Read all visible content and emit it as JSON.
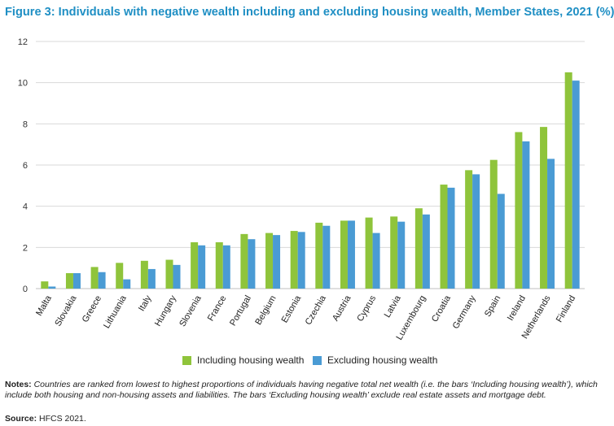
{
  "title": "Figure 3: Individuals with negative wealth including and excluding housing wealth, Member States, 2021 (%)",
  "colors": {
    "including": "#8fc43b",
    "excluding": "#4a9bd4",
    "title": "#1f8fc4",
    "grid": "#d9d9d9"
  },
  "chart_data": {
    "type": "bar",
    "title": "Individuals with negative wealth including and excluding housing wealth, Member States, 2021 (%)",
    "xlabel": "",
    "ylabel": "",
    "ylim": [
      0,
      12
    ],
    "yticks": [
      0,
      2,
      4,
      6,
      8,
      10,
      12
    ],
    "grid": true,
    "categories": [
      "Malta",
      "Slovakia",
      "Greece",
      "Lithuania",
      "Italy",
      "Hungary",
      "Slovenia",
      "France",
      "Portugal",
      "Belgium",
      "Estonia",
      "Czechia",
      "Austria",
      "Cyprus",
      "Latvia",
      "Luxembourg",
      "Croatia",
      "Germany",
      "Spain",
      "Ireland",
      "Netherlands",
      "Finland"
    ],
    "series": [
      {
        "name": "Including housing wealth",
        "values": [
          0.35,
          0.75,
          1.05,
          1.25,
          1.35,
          1.4,
          2.25,
          2.25,
          2.65,
          2.7,
          2.8,
          3.2,
          3.3,
          3.45,
          3.5,
          3.9,
          5.05,
          5.75,
          6.25,
          7.6,
          7.85,
          10.5
        ]
      },
      {
        "name": "Excluding housing wealth",
        "values": [
          0.1,
          0.75,
          0.8,
          0.45,
          0.95,
          1.15,
          2.1,
          2.1,
          2.4,
          2.6,
          2.75,
          3.05,
          3.3,
          2.7,
          3.25,
          3.6,
          4.9,
          5.55,
          4.6,
          7.15,
          6.3,
          10.1
        ]
      }
    ],
    "legend_position": "bottom-center"
  },
  "legend": {
    "including": "Including housing wealth",
    "excluding": "Excluding housing wealth"
  },
  "notes": {
    "label": "Notes:",
    "text": "Countries are ranked from lowest to highest proportions of individuals having negative total net wealth (i.e. the bars ‘Including housing wealth’), which include both housing and non-housing assets and liabilities. The bars ‘Excluding housing wealth’ exclude real estate assets and mortgage debt."
  },
  "source": {
    "label": "Source:",
    "text": "HFCS 2021."
  }
}
